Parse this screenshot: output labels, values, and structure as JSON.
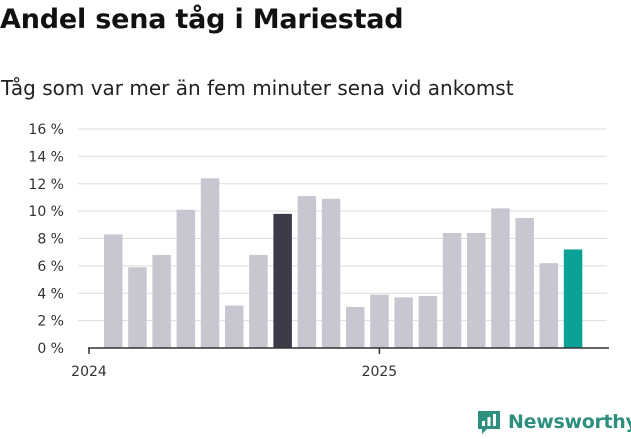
{
  "title": "Andel sena tåg i Mariestad",
  "subtitle": "Tåg som var mer än fem minuter sena vid ankomst",
  "brand": {
    "name": "Newsworthy",
    "color": "#2f8f7f",
    "icon": "newsworthy-logo-icon"
  },
  "colors": {
    "default_bar": "#c8c7d1",
    "highlight_bar": "#3d3b4a",
    "latest_bar": "#0aa297",
    "grid": "#dddddd",
    "axis": "#333333"
  },
  "chart_data": {
    "type": "bar",
    "title": "Andel sena tåg i Mariestad",
    "subtitle": "Tåg som var mer än fem minuter sena vid ankomst",
    "xlabel": "",
    "ylabel": "",
    "ylim": [
      0,
      16
    ],
    "yticks": [
      0,
      2,
      4,
      6,
      8,
      10,
      12,
      14,
      16
    ],
    "ytick_labels": [
      "0 %",
      "2 %",
      "4 %",
      "6 %",
      "8 %",
      "10 %",
      "12 %",
      "14 %",
      "16 %"
    ],
    "grid": true,
    "x_tick_labels": [
      {
        "label": "2024",
        "at_index": 0
      },
      {
        "label": "2025",
        "at_index": 12
      }
    ],
    "categories": [
      "2024-01",
      "2024-02",
      "2024-03",
      "2024-04",
      "2024-05",
      "2024-06",
      "2024-07",
      "2024-08",
      "2024-09",
      "2024-10",
      "2024-11",
      "2024-12",
      "2025-01",
      "2025-02",
      "2025-03",
      "2025-04",
      "2025-05",
      "2025-06",
      "2025-07",
      "2025-08",
      "2025-09",
      "2025-10",
      "2025-11",
      "2025-12"
    ],
    "values": [
      null,
      8.3,
      5.9,
      6.8,
      10.1,
      12.4,
      3.1,
      6.8,
      9.8,
      11.1,
      10.9,
      3.0,
      3.9,
      3.7,
      3.8,
      8.4,
      8.4,
      10.2,
      9.5,
      6.2,
      7.2,
      null,
      null,
      null
    ],
    "highlight_index": 8,
    "latest_index": 20
  }
}
